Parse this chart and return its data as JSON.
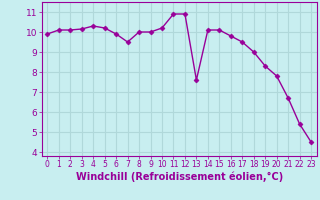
{
  "x": [
    0,
    1,
    2,
    3,
    4,
    5,
    6,
    7,
    8,
    9,
    10,
    11,
    12,
    13,
    14,
    15,
    16,
    17,
    18,
    19,
    20,
    21,
    22,
    23
  ],
  "y": [
    9.9,
    10.1,
    10.1,
    10.15,
    10.3,
    10.2,
    9.9,
    9.5,
    10.0,
    10.0,
    10.2,
    10.9,
    10.9,
    7.6,
    10.1,
    10.1,
    9.8,
    9.5,
    9.0,
    8.3,
    7.8,
    6.7,
    5.4,
    4.5
  ],
  "color": "#990099",
  "bg_color": "#c8eef0",
  "grid_color": "#b0d8da",
  "xlabel": "Windchill (Refroidissement éolien,°C)",
  "ylim": [
    3.8,
    11.5
  ],
  "xlim": [
    -0.5,
    23.5
  ],
  "yticks": [
    4,
    5,
    6,
    7,
    8,
    9,
    10,
    11
  ],
  "xticks": [
    0,
    1,
    2,
    3,
    4,
    5,
    6,
    7,
    8,
    9,
    10,
    11,
    12,
    13,
    14,
    15,
    16,
    17,
    18,
    19,
    20,
    21,
    22,
    23
  ],
  "marker": "D",
  "markersize": 2.5,
  "linewidth": 1.0,
  "tick_fontsize": 6.5,
  "xlabel_fontsize": 7.0,
  "tick_fontsize_x": 5.5
}
